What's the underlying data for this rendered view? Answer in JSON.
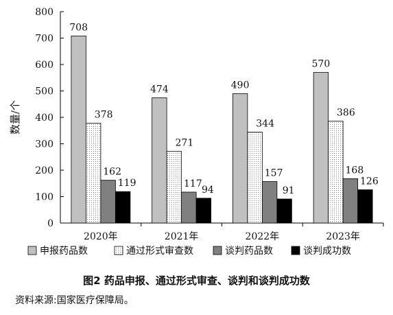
{
  "chart_data": {
    "type": "bar",
    "categories": [
      "2020年",
      "2021年",
      "2022年",
      "2023年"
    ],
    "series": [
      {
        "name": "申报药品数",
        "values": [
          708,
          474,
          490,
          570
        ],
        "fill": "#c0c0c0",
        "pattern": "solid"
      },
      {
        "name": "通过形式审查数",
        "values": [
          378,
          271,
          344,
          386
        ],
        "fill": "#ffffff",
        "pattern": "dots"
      },
      {
        "name": "谈判药品数",
        "values": [
          162,
          117,
          157,
          168
        ],
        "fill": "#808080",
        "pattern": "solid"
      },
      {
        "name": "谈判成功数",
        "values": [
          119,
          94,
          91,
          126
        ],
        "fill": "#000000",
        "pattern": "solid"
      }
    ],
    "ylabel": "数量/个",
    "ylim": [
      0,
      800
    ],
    "yticks": [
      0,
      100,
      200,
      300,
      400,
      500,
      600,
      700,
      800
    ],
    "grid": false,
    "legend": "bottom"
  },
  "caption": "图2 药品申报、通过形式审查、谈判和谈判成功数",
  "source": "资料来源:国家医疗保障局。"
}
